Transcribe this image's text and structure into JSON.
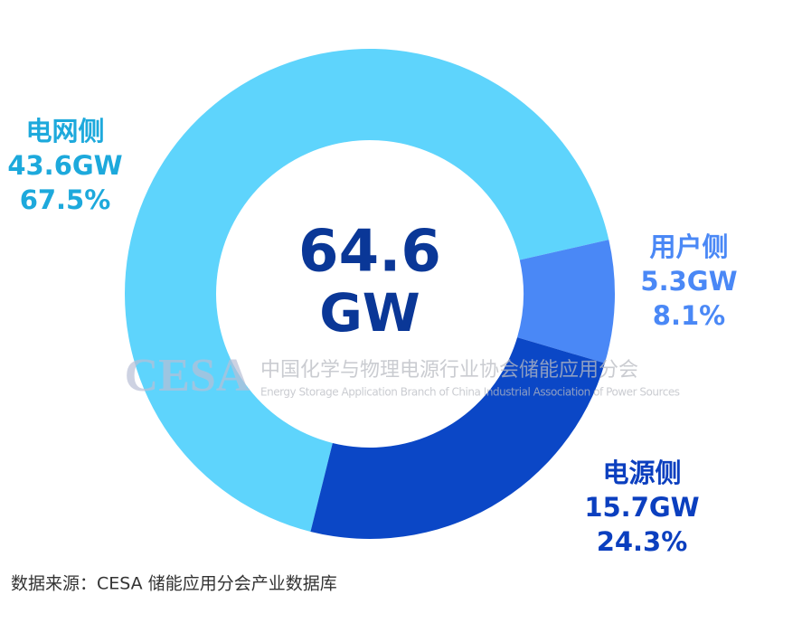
{
  "chart_data": {
    "type": "pie",
    "categories": [
      "电网侧",
      "用户侧",
      "电源侧"
    ],
    "values": [
      67.5,
      8.1,
      24.3
    ],
    "value_labels": [
      "67.5%",
      "8.1%",
      "24.3%"
    ],
    "capacity": [
      43.6,
      5.3,
      15.7
    ],
    "capacity_labels": [
      "43.6GW",
      "5.3GW",
      "15.7GW"
    ],
    "colors": [
      "#5ed4fc",
      "#4a88f6",
      "#0b47c6"
    ],
    "label_colors": [
      "#1da9dc",
      "#4a88f6",
      "#0b3fbf"
    ],
    "total": 64.6,
    "total_unit": "GW",
    "watermark": {
      "logo": "CESA",
      "name": "中国化学与物理电源行业协会储能应用分会",
      "name_en": "Energy Storage Application Branch of China Industrial Association of Power Sources"
    },
    "source": "数据来源：CESA 储能应用分会产业数据库"
  }
}
